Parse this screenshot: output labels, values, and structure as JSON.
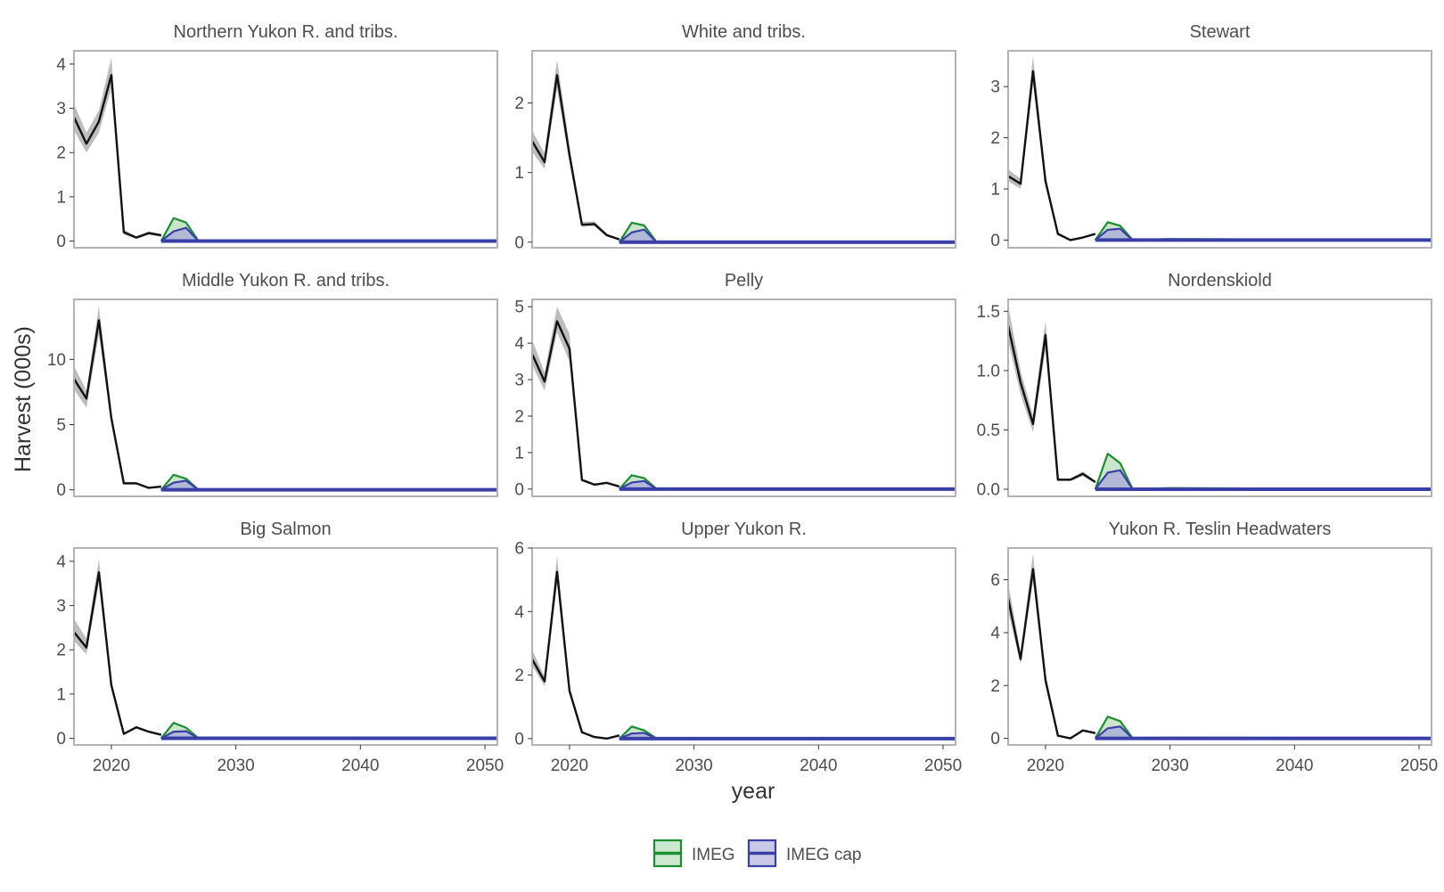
{
  "chart_data": {
    "type": "line",
    "ylabel": "Harvest (000s)",
    "xlabel": "year",
    "xlim": [
      2017,
      2051
    ],
    "x_ticks": [
      2020,
      2030,
      2040,
      2050
    ],
    "grid": false,
    "legend_position": "bottom",
    "legend": [
      {
        "name": "IMEG",
        "line_color": "#1a8f2e",
        "fill_color": "#cde7d0"
      },
      {
        "name": "IMEG cap",
        "line_color": "#3a3fa8",
        "fill_color": "#c9c9e6"
      }
    ],
    "colors": {
      "observed_line": "#111111",
      "observed_band": "#bdbdbd",
      "panel_border": "#b3b3b3",
      "imeg_line": "#1a8f2e",
      "imeg_fill": "#b9dcbc",
      "cap_line": "#3a3fa8",
      "cap_fill": "#aeb2d8"
    },
    "facets": [
      {
        "title": "Northern Yukon R. and tribs.",
        "ylim": [
          -0.15,
          4.3
        ],
        "y_ticks": [
          "0",
          "1",
          "2",
          "3",
          "4"
        ],
        "y_tick_values": [
          0,
          1,
          2,
          3,
          4
        ],
        "observed": {
          "x": [
            2017,
            2018,
            2019,
            2020,
            2021,
            2022,
            2023,
            2024
          ],
          "y": [
            2.8,
            2.2,
            2.7,
            3.75,
            0.2,
            0.08,
            0.18,
            0.13
          ],
          "lower": [
            2.5,
            2.0,
            2.45,
            3.45,
            0.15,
            0.05,
            0.14,
            0.1
          ],
          "upper": [
            3.1,
            2.45,
            2.95,
            4.15,
            0.26,
            0.11,
            0.22,
            0.16
          ]
        },
        "imeg": {
          "x": [
            2024,
            2025,
            2026,
            2027,
            2051
          ],
          "y": [
            0.0,
            0.52,
            0.42,
            0.0,
            0.0
          ]
        },
        "imeg_cap": {
          "x": [
            2024,
            2025,
            2026,
            2027,
            2051
          ],
          "y": [
            0.0,
            0.22,
            0.3,
            0.0,
            0.0
          ]
        }
      },
      {
        "title": "White and tribs.",
        "ylim": [
          -0.08,
          2.75
        ],
        "y_ticks": [
          "0",
          "1",
          "2"
        ],
        "y_tick_values": [
          0,
          1,
          2
        ],
        "observed": {
          "x": [
            2017,
            2018,
            2019,
            2020,
            2021,
            2022,
            2023,
            2024
          ],
          "y": [
            1.45,
            1.15,
            2.4,
            1.25,
            0.25,
            0.26,
            0.1,
            0.04
          ],
          "lower": [
            1.3,
            1.05,
            2.2,
            1.15,
            0.22,
            0.23,
            0.08,
            0.03
          ],
          "upper": [
            1.6,
            1.28,
            2.62,
            1.38,
            0.29,
            0.3,
            0.12,
            0.05
          ]
        },
        "imeg": {
          "x": [
            2024,
            2025,
            2026,
            2027,
            2051
          ],
          "y": [
            0.0,
            0.28,
            0.24,
            0.0,
            0.0
          ]
        },
        "imeg_cap": {
          "x": [
            2024,
            2025,
            2026,
            2027,
            2051
          ],
          "y": [
            0.0,
            0.14,
            0.18,
            0.0,
            0.0
          ]
        }
      },
      {
        "title": "Stewart",
        "ylim": [
          -0.15,
          3.7
        ],
        "y_ticks": [
          "0",
          "1",
          "2",
          "3"
        ],
        "y_tick_values": [
          0,
          1,
          2,
          3
        ],
        "observed": {
          "x": [
            2017,
            2018,
            2019,
            2020,
            2021,
            2022,
            2023,
            2024
          ],
          "y": [
            1.25,
            1.1,
            3.3,
            1.15,
            0.12,
            0.0,
            0.05,
            0.12
          ],
          "lower": [
            1.15,
            1.0,
            3.05,
            1.05,
            0.1,
            0.0,
            0.04,
            0.1
          ],
          "upper": [
            1.38,
            1.2,
            3.6,
            1.28,
            0.15,
            0.02,
            0.07,
            0.14
          ]
        },
        "imeg": {
          "x": [
            2024,
            2025,
            2026,
            2027,
            2030,
            2051
          ],
          "y": [
            0.0,
            0.35,
            0.28,
            0.0,
            0.02,
            0.0
          ]
        },
        "imeg_cap": {
          "x": [
            2024,
            2025,
            2026,
            2027,
            2051
          ],
          "y": [
            0.0,
            0.2,
            0.22,
            0.0,
            0.0
          ]
        }
      },
      {
        "title": "Middle Yukon R. and tribs.",
        "ylim": [
          -0.5,
          14.6
        ],
        "y_ticks": [
          "0",
          "5",
          "10"
        ],
        "y_tick_values": [
          0,
          5,
          10
        ],
        "observed": {
          "x": [
            2017,
            2018,
            2019,
            2020,
            2021,
            2022,
            2023,
            2024
          ],
          "y": [
            8.5,
            7.0,
            13.0,
            5.5,
            0.5,
            0.5,
            0.15,
            0.25
          ],
          "lower": [
            7.7,
            6.3,
            11.9,
            5.0,
            0.45,
            0.45,
            0.12,
            0.22
          ],
          "upper": [
            9.5,
            7.6,
            14.1,
            6.0,
            0.56,
            0.56,
            0.18,
            0.28
          ]
        },
        "imeg": {
          "x": [
            2024,
            2025,
            2026,
            2027,
            2051
          ],
          "y": [
            0.0,
            1.15,
            0.85,
            0.0,
            0.0
          ]
        },
        "imeg_cap": {
          "x": [
            2024,
            2025,
            2026,
            2027,
            2051
          ],
          "y": [
            0.0,
            0.55,
            0.7,
            0.0,
            0.0
          ]
        }
      },
      {
        "title": "Pelly",
        "ylim": [
          -0.2,
          5.2
        ],
        "y_ticks": [
          "0",
          "1",
          "2",
          "3",
          "4",
          "5"
        ],
        "y_tick_values": [
          0,
          1,
          2,
          3,
          4,
          5
        ],
        "observed": {
          "x": [
            2017,
            2018,
            2019,
            2020,
            2021,
            2022,
            2023,
            2024
          ],
          "y": [
            3.7,
            2.95,
            4.6,
            3.85,
            0.25,
            0.12,
            0.17,
            0.07
          ],
          "lower": [
            3.4,
            2.7,
            4.3,
            3.5,
            0.22,
            0.1,
            0.14,
            0.05
          ],
          "upper": [
            4.1,
            3.2,
            5.0,
            4.25,
            0.29,
            0.15,
            0.2,
            0.09
          ]
        },
        "imeg": {
          "x": [
            2024,
            2025,
            2026,
            2027,
            2051
          ],
          "y": [
            0.0,
            0.38,
            0.3,
            0.0,
            0.0
          ]
        },
        "imeg_cap": {
          "x": [
            2024,
            2025,
            2026,
            2027,
            2051
          ],
          "y": [
            0.0,
            0.18,
            0.22,
            0.0,
            0.0
          ]
        }
      },
      {
        "title": "Nordenskiold",
        "ylim": [
          -0.06,
          1.6
        ],
        "y_ticks": [
          "0.0",
          "0.5",
          "1.0",
          "1.5"
        ],
        "y_tick_values": [
          0,
          0.5,
          1.0,
          1.5
        ],
        "observed": {
          "x": [
            2017,
            2018,
            2019,
            2020,
            2021,
            2022,
            2023,
            2024
          ],
          "y": [
            1.38,
            0.9,
            0.55,
            1.3,
            0.08,
            0.08,
            0.13,
            0.06
          ],
          "lower": [
            1.25,
            0.8,
            0.48,
            1.18,
            0.07,
            0.07,
            0.11,
            0.05
          ],
          "upper": [
            1.55,
            1.0,
            0.62,
            1.42,
            0.09,
            0.09,
            0.15,
            0.07
          ]
        },
        "imeg": {
          "x": [
            2024,
            2025,
            2026,
            2027,
            2030,
            2051
          ],
          "y": [
            0.0,
            0.3,
            0.22,
            0.0,
            0.01,
            0.0
          ]
        },
        "imeg_cap": {
          "x": [
            2024,
            2025,
            2026,
            2027,
            2051
          ],
          "y": [
            0.0,
            0.14,
            0.16,
            0.0,
            0.0
          ]
        }
      },
      {
        "title": "Big Salmon",
        "ylim": [
          -0.15,
          4.3
        ],
        "y_ticks": [
          "0",
          "1",
          "2",
          "3",
          "4"
        ],
        "y_tick_values": [
          0,
          1,
          2,
          3,
          4
        ],
        "observed": {
          "x": [
            2017,
            2018,
            2019,
            2020,
            2021,
            2022,
            2023,
            2024
          ],
          "y": [
            2.4,
            2.05,
            3.75,
            1.2,
            0.1,
            0.25,
            0.15,
            0.08
          ],
          "lower": [
            2.2,
            1.9,
            3.5,
            1.1,
            0.08,
            0.22,
            0.13,
            0.06
          ],
          "upper": [
            2.7,
            2.25,
            4.05,
            1.32,
            0.12,
            0.28,
            0.17,
            0.1
          ]
        },
        "imeg": {
          "x": [
            2024,
            2025,
            2026,
            2027,
            2051
          ],
          "y": [
            0.0,
            0.35,
            0.24,
            0.0,
            0.0
          ]
        },
        "imeg_cap": {
          "x": [
            2024,
            2025,
            2026,
            2027,
            2051
          ],
          "y": [
            0.0,
            0.15,
            0.16,
            0.0,
            0.0
          ]
        }
      },
      {
        "title": "Upper Yukon R.",
        "ylim": [
          -0.2,
          6.0
        ],
        "y_ticks": [
          "0",
          "2",
          "4",
          "6"
        ],
        "y_tick_values": [
          0,
          2,
          4,
          6
        ],
        "observed": {
          "x": [
            2017,
            2018,
            2019,
            2020,
            2021,
            2022,
            2023,
            2024
          ],
          "y": [
            2.5,
            1.8,
            5.25,
            1.5,
            0.2,
            0.05,
            0.0,
            0.1
          ],
          "lower": [
            2.3,
            1.65,
            4.9,
            1.4,
            0.18,
            0.04,
            0.0,
            0.08
          ],
          "upper": [
            2.8,
            1.95,
            5.75,
            1.65,
            0.23,
            0.07,
            0.02,
            0.12
          ]
        },
        "imeg": {
          "x": [
            2024,
            2025,
            2026,
            2027,
            2051
          ],
          "y": [
            0.0,
            0.38,
            0.26,
            0.0,
            0.0
          ]
        },
        "imeg_cap": {
          "x": [
            2024,
            2025,
            2026,
            2027,
            2051
          ],
          "y": [
            0.0,
            0.16,
            0.18,
            0.0,
            0.0
          ]
        }
      },
      {
        "title": "Yukon R. Teslin Headwaters",
        "ylim": [
          -0.25,
          7.2
        ],
        "y_ticks": [
          "0",
          "2",
          "4",
          "6"
        ],
        "y_tick_values": [
          0,
          2,
          4,
          6
        ],
        "observed": {
          "x": [
            2017,
            2018,
            2019,
            2020,
            2021,
            2022,
            2023,
            2024
          ],
          "y": [
            5.3,
            3.0,
            6.4,
            2.2,
            0.1,
            0.0,
            0.3,
            0.2
          ],
          "lower": [
            4.8,
            2.8,
            5.95,
            2.0,
            0.08,
            0.0,
            0.26,
            0.17
          ],
          "upper": [
            5.9,
            3.25,
            7.0,
            2.45,
            0.13,
            0.02,
            0.34,
            0.23
          ]
        },
        "imeg": {
          "x": [
            2024,
            2025,
            2026,
            2027,
            2030,
            2051
          ],
          "y": [
            0.0,
            0.82,
            0.65,
            0.0,
            0.03,
            0.0
          ]
        },
        "imeg_cap": {
          "x": [
            2024,
            2025,
            2026,
            2027,
            2051
          ],
          "y": [
            0.0,
            0.38,
            0.45,
            0.0,
            0.0
          ]
        }
      }
    ]
  }
}
